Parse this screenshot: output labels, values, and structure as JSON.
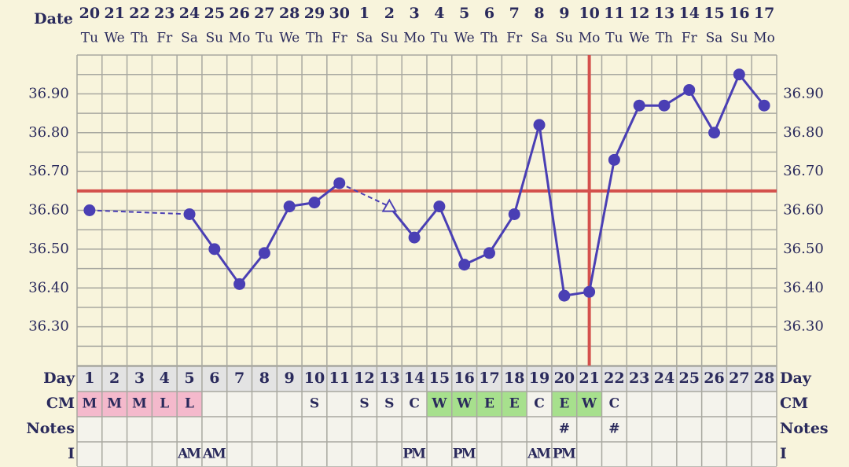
{
  "chart_data": {
    "type": "line",
    "date_label": "Date",
    "dates": [
      20,
      21,
      22,
      23,
      24,
      25,
      26,
      27,
      28,
      29,
      30,
      1,
      2,
      3,
      4,
      5,
      6,
      7,
      8,
      9,
      10,
      11,
      12,
      13,
      14,
      15,
      16,
      17
    ],
    "weekdays": [
      "Tu",
      "We",
      "Th",
      "Fr",
      "Sa",
      "Su",
      "Mo",
      "Tu",
      "We",
      "Th",
      "Fr",
      "Sa",
      "Su",
      "Mo",
      "Tu",
      "We",
      "Th",
      "Fr",
      "Sa",
      "Su",
      "Mo",
      "Tu",
      "We",
      "Th",
      "Fr",
      "Sa",
      "Su",
      "Mo"
    ],
    "values": [
      36.6,
      null,
      null,
      null,
      36.59,
      36.5,
      36.41,
      36.49,
      36.61,
      36.62,
      36.67,
      null,
      36.61,
      36.53,
      36.61,
      36.46,
      36.49,
      36.59,
      36.82,
      36.38,
      36.39,
      36.73,
      36.87,
      36.87,
      36.91,
      36.8,
      36.95,
      36.87
    ],
    "color": "#4a3fb4",
    "excluded_indices": [
      12
    ],
    "ylim": [
      36.2,
      37.0
    ],
    "yticks": [
      {
        "value": 36.3,
        "label": "36.30"
      },
      {
        "value": 36.4,
        "label": "36.40"
      },
      {
        "value": 36.5,
        "label": "36.50"
      },
      {
        "value": 36.6,
        "label": "36.60"
      },
      {
        "value": 36.7,
        "label": "36.70"
      },
      {
        "value": 36.8,
        "label": "36.80"
      },
      {
        "value": 36.9,
        "label": "36.90"
      }
    ],
    "y_minor_grid": [
      36.25,
      36.35,
      36.45,
      36.55,
      36.65,
      36.75,
      36.85,
      36.95
    ],
    "coverline": 36.65,
    "ovulation_index": 20,
    "marker_line_color": "#d4504c",
    "rows": [
      {
        "label": "Day",
        "cells": [
          1,
          2,
          3,
          4,
          5,
          6,
          7,
          8,
          9,
          10,
          11,
          12,
          13,
          14,
          15,
          16,
          17,
          18,
          19,
          20,
          21,
          22,
          23,
          24,
          25,
          26,
          27,
          28
        ]
      },
      {
        "label": "CM",
        "cells": [
          "M",
          "M",
          "M",
          "L",
          "L",
          null,
          null,
          null,
          null,
          "S",
          null,
          "S",
          "S",
          "C",
          "W",
          "W",
          "E",
          "E",
          "C",
          "E",
          "W",
          "C",
          null,
          null,
          null,
          null,
          null,
          null
        ]
      },
      {
        "label": "Notes",
        "cells": [
          null,
          null,
          null,
          null,
          null,
          null,
          null,
          null,
          null,
          null,
          null,
          null,
          null,
          null,
          null,
          null,
          null,
          null,
          null,
          "#",
          null,
          "#",
          null,
          null,
          null,
          null,
          null,
          null
        ]
      },
      {
        "label": "I",
        "cells": [
          null,
          null,
          null,
          null,
          "AM",
          "AM",
          null,
          null,
          null,
          null,
          null,
          null,
          null,
          "PM",
          null,
          "PM",
          null,
          null,
          "AM",
          "PM",
          null,
          null,
          null,
          null,
          null,
          null,
          null,
          null
        ]
      }
    ],
    "cm_colors": {
      "M": "#f4b9cc",
      "L": "#f4b9cc",
      "W": "#a7e08d",
      "E": "#a7e08d"
    }
  }
}
